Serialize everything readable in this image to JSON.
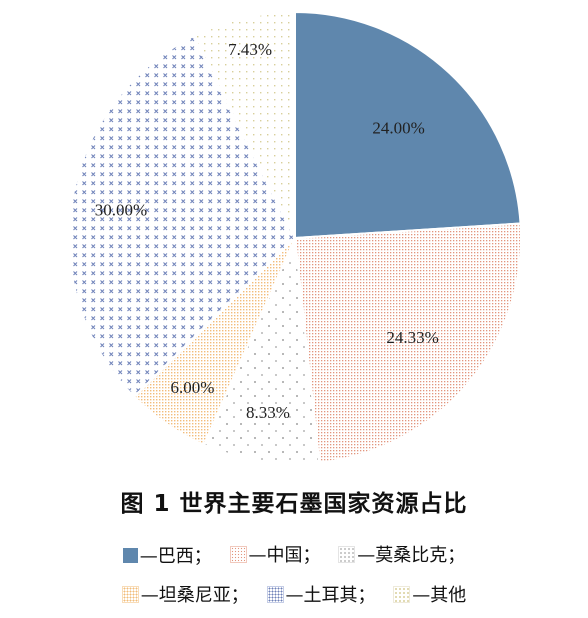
{
  "chart_data": {
    "type": "pie",
    "title": "图 1   世界主要石墨国家资源占比",
    "slices": [
      {
        "name": "—巴西；",
        "value": 24.0,
        "label": "24.00%",
        "color": "#5f87ad",
        "pattern": "solid"
      },
      {
        "name": "—中国；",
        "value": 24.33,
        "label": "24.33%",
        "color": "#e2957d",
        "pattern": "dense-dots"
      },
      {
        "name": "—莫桑比克；",
        "value": 8.33,
        "label": "8.33%",
        "color": "#b8b8b8",
        "pattern": "sparse-dots"
      },
      {
        "name": "—坦桑尼亚；",
        "value": 6.0,
        "label": "6.00%",
        "color": "#f2bc7a",
        "pattern": "dense-dots"
      },
      {
        "name": "—土耳其；",
        "value": 30.0,
        "label": "30.00%",
        "color": "#6f82b8",
        "pattern": "crosses"
      },
      {
        "name": "—其他",
        "value": 7.43,
        "label": "7.43%",
        "color": "#d8cf9a",
        "pattern": "sparse-dots"
      }
    ],
    "start_angle_deg": 0,
    "direction": "clockwise",
    "legend_position": "bottom"
  }
}
